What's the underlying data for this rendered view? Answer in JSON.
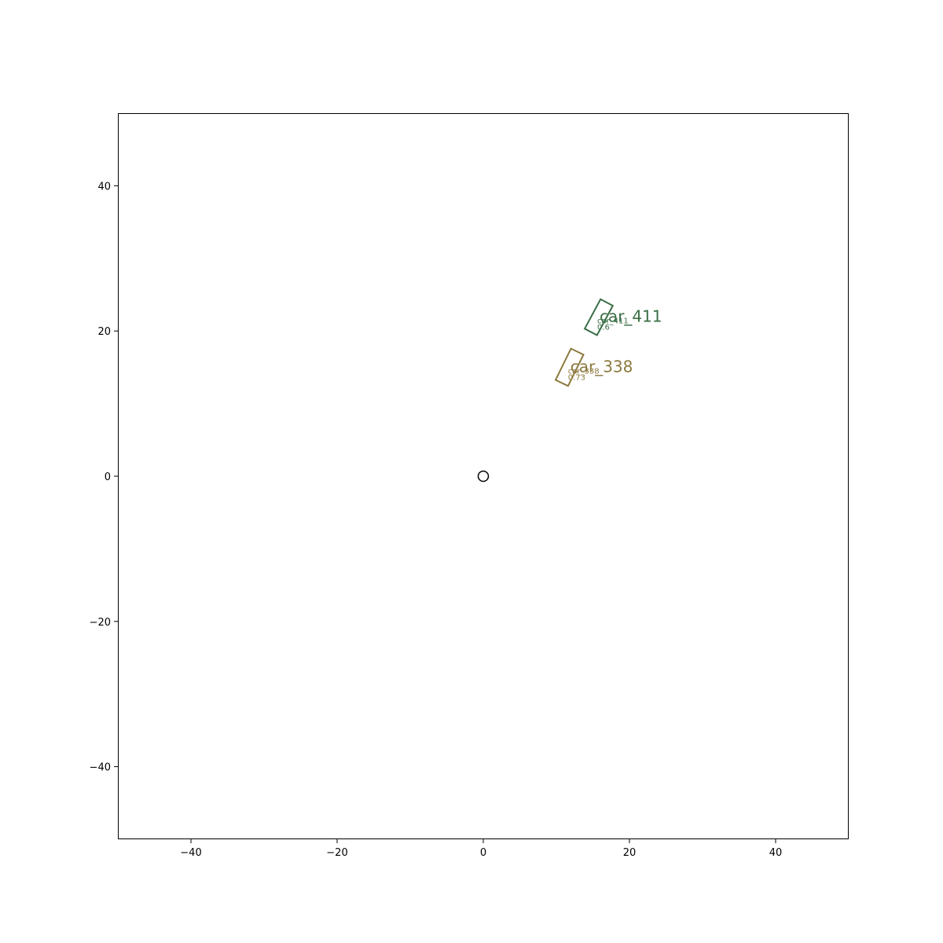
{
  "chart_data": {
    "type": "scatter",
    "title": "",
    "xlabel": "",
    "ylabel": "",
    "xlim": [
      -50,
      50
    ],
    "ylim": [
      -50,
      50
    ],
    "grid": false,
    "x_ticks": [
      -40,
      -20,
      0,
      20,
      40
    ],
    "y_ticks": [
      -40,
      -20,
      0,
      20,
      40
    ],
    "x_tick_labels": [
      "−40",
      "−20",
      "0",
      "20",
      "40"
    ],
    "y_tick_labels": [
      "−40",
      "−20",
      "0",
      "20",
      "40"
    ],
    "origin_marker": {
      "x": 0,
      "y": 0,
      "color": "#000000"
    },
    "objects": [
      {
        "label": "car_411",
        "sub_label_1": "car_411",
        "sub_label_2": "0.6",
        "color": "#3a6e45",
        "center": [
          15.8,
          21.9
        ],
        "length": 4.6,
        "width": 1.9,
        "heading_deg": 62
      },
      {
        "label": "car_338",
        "sub_label_1": "car_338",
        "sub_label_2": "0.73",
        "color": "#8c7a3e",
        "center": [
          11.8,
          15.0
        ],
        "length": 4.8,
        "width": 1.9,
        "heading_deg": 64
      }
    ]
  }
}
